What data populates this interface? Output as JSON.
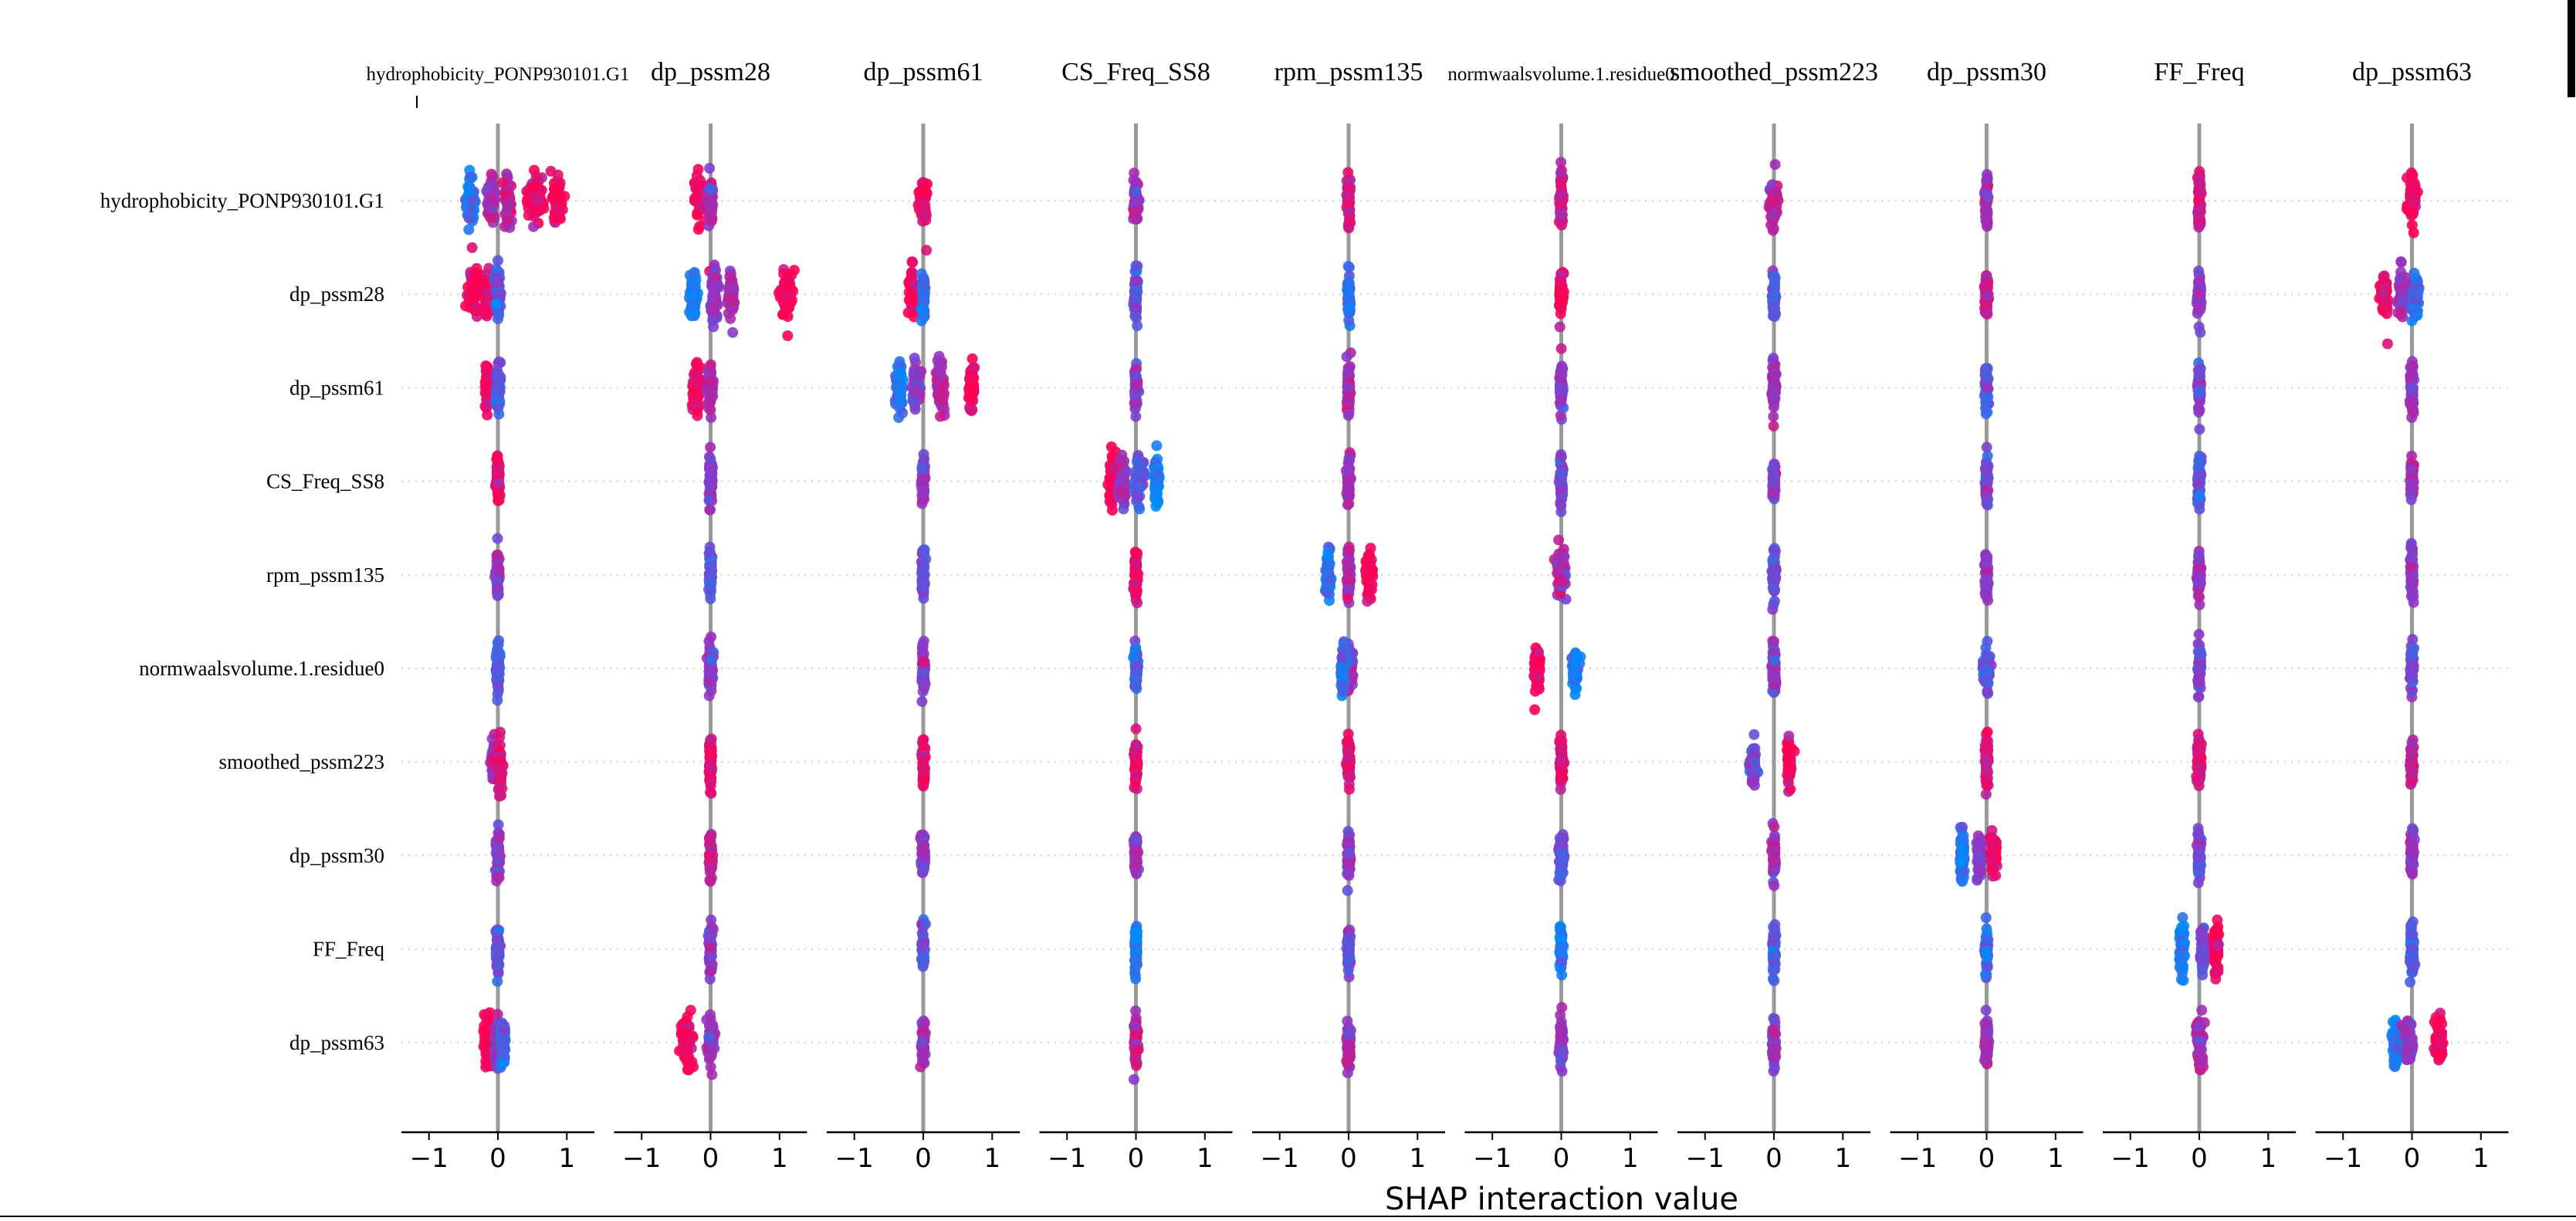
{
  "chart_data": {
    "type": "scatter",
    "title": "",
    "xlabel": "SHAP interaction value",
    "xlim": [
      -1.4,
      1.4
    ],
    "x_ticks": [
      -1,
      0,
      1
    ],
    "x_tick_labels": [
      "−1",
      "0",
      "1"
    ],
    "features": [
      "hydrophobicity_PONP930101.G1",
      "dp_pssm28",
      "dp_pssm61",
      "CS_Freq_SS8",
      "rpm_pssm135",
      "normwaalsvolume.1.residue0",
      "smoothed_pssm223",
      "dp_pssm30",
      "FF_Freq",
      "dp_pssm63"
    ],
    "row_labels": [
      "hydrophobicity_PONP930101.G1",
      "dp_pssm28",
      "dp_pssm61",
      "CS_Freq_SS8",
      "rpm_pssm135",
      "normwaalsvolume.1.residue0",
      "smoothed_pssm223",
      "dp_pssm30",
      "FF_Freq",
      "dp_pssm63"
    ],
    "panel_titles": [
      "hydrophobicity_PONP930101.G1",
      "dp_pssm28",
      "dp_pssm61",
      "CS_Freq_SS8",
      "rpm_pssm135",
      "normwaalsvolume.1.residue0",
      "smoothed_pssm223",
      "dp_pssm30",
      "FF_Freq",
      "dp_pssm63"
    ],
    "colors": {
      "low": "#008afb",
      "high": "#ff0051",
      "mid": "#8c38c8",
      "zero_line": "#999999",
      "axis": "#000000"
    },
    "color_meaning": "feature value (blue = low, red = high)",
    "dot_clusters": [
      [
        [
          {
            "x": -0.4,
            "s": 0.06,
            "c": 0.1
          },
          {
            "x": -0.1,
            "s": 0.05,
            "c": 0.6
          },
          {
            "x": 0.15,
            "s": 0.04,
            "c": 0.7
          },
          {
            "x": 0.55,
            "s": 0.1,
            "c": 0.9
          },
          {
            "x": 0.85,
            "s": 0.06,
            "c": 1
          }
        ],
        [
          {
            "x": -0.35,
            "s": 0.07,
            "c": 0.95
          },
          {
            "x": -0.15,
            "s": 0.05,
            "c": 0.9
          },
          {
            "x": 0.0,
            "s": 0.04,
            "c": 0.3
          }
        ],
        [
          {
            "x": -0.15,
            "s": 0.03,
            "c": 0.9
          },
          {
            "x": 0.0,
            "s": 0.03,
            "c": 0.3
          }
        ],
        [
          {
            "x": 0.0,
            "s": 0.02,
            "c": 0.9
          }
        ],
        [
          {
            "x": 0.0,
            "s": 0.02,
            "c": 0.5
          }
        ],
        [
          {
            "x": 0.0,
            "s": 0.02,
            "c": 0.3
          }
        ],
        [
          {
            "x": -0.05,
            "s": 0.04,
            "c": 0.6
          },
          {
            "x": 0.03,
            "s": 0.03,
            "c": 0.8
          }
        ],
        [
          {
            "x": 0.0,
            "s": 0.02,
            "c": 0.5
          }
        ],
        [
          {
            "x": 0.0,
            "s": 0.02,
            "c": 0.3
          }
        ],
        [
          {
            "x": -0.15,
            "s": 0.05,
            "c": 0.95
          },
          {
            "x": 0.0,
            "s": 0.04,
            "c": 0.5
          },
          {
            "x": 0.08,
            "s": 0.03,
            "c": 0.2
          }
        ]
      ],
      [
        [
          {
            "x": -0.15,
            "s": 0.08,
            "c": 0.95
          },
          {
            "x": 0.0,
            "s": 0.03,
            "c": 0.6
          }
        ],
        [
          {
            "x": -0.25,
            "s": 0.04,
            "c": 0.1
          },
          {
            "x": 0.05,
            "s": 0.05,
            "c": 0.5
          },
          {
            "x": 0.3,
            "s": 0.03,
            "c": 0.6
          },
          {
            "x": 1.1,
            "s": 0.08,
            "c": 0.95
          }
        ],
        [
          {
            "x": -0.2,
            "s": 0.05,
            "c": 0.95
          },
          {
            "x": 0.0,
            "s": 0.03,
            "c": 0.6
          }
        ],
        [
          {
            "x": 0.0,
            "s": 0.02,
            "c": 0.5
          }
        ],
        [
          {
            "x": 0.0,
            "s": 0.02,
            "c": 0.3
          }
        ],
        [
          {
            "x": 0.0,
            "s": 0.03,
            "c": 0.5
          }
        ],
        [
          {
            "x": 0.0,
            "s": 0.02,
            "c": 0.9
          }
        ],
        [
          {
            "x": 0.0,
            "s": 0.02,
            "c": 0.7
          }
        ],
        [
          {
            "x": 0.0,
            "s": 0.02,
            "c": 0.5
          }
        ],
        [
          {
            "x": -0.35,
            "s": 0.07,
            "c": 0.95
          },
          {
            "x": 0.0,
            "s": 0.04,
            "c": 0.5
          }
        ]
      ],
      [
        [
          {
            "x": 0.0,
            "s": 0.04,
            "c": 0.95
          }
        ],
        [
          {
            "x": -0.15,
            "s": 0.05,
            "c": 0.95
          },
          {
            "x": 0.0,
            "s": 0.02,
            "c": 0.2
          }
        ],
        [
          {
            "x": -0.35,
            "s": 0.04,
            "c": 0.1
          },
          {
            "x": -0.1,
            "s": 0.05,
            "c": 0.5
          },
          {
            "x": 0.25,
            "s": 0.05,
            "c": 0.6
          },
          {
            "x": 0.7,
            "s": 0.03,
            "c": 0.95
          }
        ],
        [
          {
            "x": 0.0,
            "s": 0.02,
            "c": 0.5
          }
        ],
        [
          {
            "x": 0.0,
            "s": 0.02,
            "c": 0.3
          }
        ],
        [
          {
            "x": 0.0,
            "s": 0.02,
            "c": 0.5
          }
        ],
        [
          {
            "x": 0.0,
            "s": 0.02,
            "c": 0.9
          }
        ],
        [
          {
            "x": 0.0,
            "s": 0.02,
            "c": 0.5
          }
        ],
        [
          {
            "x": 0.0,
            "s": 0.02,
            "c": 0.3
          }
        ],
        [
          {
            "x": 0.0,
            "s": 0.02,
            "c": 0.6
          }
        ]
      ],
      [
        [
          {
            "x": 0.0,
            "s": 0.03,
            "c": 0.6
          }
        ],
        [
          {
            "x": 0.0,
            "s": 0.02,
            "c": 0.3
          }
        ],
        [
          {
            "x": 0.0,
            "s": 0.02,
            "c": 0.5
          }
        ],
        [
          {
            "x": -0.35,
            "s": 0.04,
            "c": 0.95
          },
          {
            "x": -0.2,
            "s": 0.05,
            "c": 0.6
          },
          {
            "x": 0.05,
            "s": 0.06,
            "c": 0.3
          },
          {
            "x": 0.3,
            "s": 0.03,
            "c": 0.05
          }
        ],
        [
          {
            "x": 0.0,
            "s": 0.02,
            "c": 0.9
          }
        ],
        [
          {
            "x": 0.0,
            "s": 0.02,
            "c": 0.3
          }
        ],
        [
          {
            "x": 0.0,
            "s": 0.02,
            "c": 0.95
          }
        ],
        [
          {
            "x": 0.0,
            "s": 0.02,
            "c": 0.5
          }
        ],
        [
          {
            "x": 0.0,
            "s": 0.02,
            "c": 0.1
          }
        ],
        [
          {
            "x": 0.0,
            "s": 0.02,
            "c": 0.7
          }
        ]
      ],
      [
        [
          {
            "x": 0.0,
            "s": 0.02,
            "c": 0.8
          }
        ],
        [
          {
            "x": 0.0,
            "s": 0.02,
            "c": 0.2
          }
        ],
        [
          {
            "x": 0.0,
            "s": 0.02,
            "c": 0.6
          }
        ],
        [
          {
            "x": 0.0,
            "s": 0.02,
            "c": 0.6
          }
        ],
        [
          {
            "x": -0.3,
            "s": 0.03,
            "c": 0.1
          },
          {
            "x": 0.0,
            "s": 0.02,
            "c": 0.6
          },
          {
            "x": 0.3,
            "s": 0.04,
            "c": 0.95
          }
        ],
        [
          {
            "x": 0.0,
            "s": 0.06,
            "c": 0.5
          },
          {
            "x": -0.08,
            "s": 0.03,
            "c": 0.2
          }
        ],
        [
          {
            "x": 0.0,
            "s": 0.02,
            "c": 0.9
          }
        ],
        [
          {
            "x": 0.0,
            "s": 0.02,
            "c": 0.5
          }
        ],
        [
          {
            "x": 0.0,
            "s": 0.02,
            "c": 0.3
          }
        ],
        [
          {
            "x": 0.0,
            "s": 0.02,
            "c": 0.6
          }
        ]
      ],
      [
        [
          {
            "x": 0.0,
            "s": 0.02,
            "c": 0.8
          }
        ],
        [
          {
            "x": 0.0,
            "s": 0.03,
            "c": 0.95
          }
        ],
        [
          {
            "x": 0.0,
            "s": 0.02,
            "c": 0.5
          }
        ],
        [
          {
            "x": 0.0,
            "s": 0.02,
            "c": 0.4
          }
        ],
        [
          {
            "x": 0.0,
            "s": 0.06,
            "c": 0.6
          }
        ],
        [
          {
            "x": -0.35,
            "s": 0.03,
            "c": 0.95
          },
          {
            "x": 0.2,
            "s": 0.04,
            "c": 0.1
          }
        ],
        [
          {
            "x": 0.0,
            "s": 0.02,
            "c": 0.8
          }
        ],
        [
          {
            "x": 0.0,
            "s": 0.03,
            "c": 0.4
          }
        ],
        [
          {
            "x": 0.0,
            "s": 0.02,
            "c": 0.1
          }
        ],
        [
          {
            "x": 0.0,
            "s": 0.02,
            "c": 0.5
          }
        ]
      ],
      [
        [
          {
            "x": 0.0,
            "s": 0.05,
            "c": 0.7
          }
        ],
        [
          {
            "x": 0.0,
            "s": 0.02,
            "c": 0.3
          }
        ],
        [
          {
            "x": 0.0,
            "s": 0.02,
            "c": 0.6
          }
        ],
        [
          {
            "x": 0.0,
            "s": 0.02,
            "c": 0.5
          }
        ],
        [
          {
            "x": 0.0,
            "s": 0.02,
            "c": 0.4
          }
        ],
        [
          {
            "x": 0.0,
            "s": 0.02,
            "c": 0.5
          }
        ],
        [
          {
            "x": -0.3,
            "s": 0.04,
            "c": 0.4
          },
          {
            "x": 0.22,
            "s": 0.03,
            "c": 0.95
          }
        ],
        [
          {
            "x": 0.0,
            "s": 0.02,
            "c": 0.6
          }
        ],
        [
          {
            "x": 0.0,
            "s": 0.02,
            "c": 0.2
          }
        ],
        [
          {
            "x": 0.0,
            "s": 0.02,
            "c": 0.5
          }
        ]
      ],
      [
        [
          {
            "x": 0.0,
            "s": 0.02,
            "c": 0.6
          }
        ],
        [
          {
            "x": 0.0,
            "s": 0.02,
            "c": 0.8
          }
        ],
        [
          {
            "x": 0.0,
            "s": 0.02,
            "c": 0.3
          }
        ],
        [
          {
            "x": 0.0,
            "s": 0.02,
            "c": 0.4
          }
        ],
        [
          {
            "x": 0.0,
            "s": 0.02,
            "c": 0.5
          }
        ],
        [
          {
            "x": 0.0,
            "s": 0.04,
            "c": 0.3
          }
        ],
        [
          {
            "x": 0.0,
            "s": 0.02,
            "c": 0.8
          }
        ],
        [
          {
            "x": -0.35,
            "s": 0.03,
            "c": 0.15
          },
          {
            "x": -0.1,
            "s": 0.03,
            "c": 0.5
          },
          {
            "x": 0.1,
            "s": 0.04,
            "c": 0.9
          }
        ],
        [
          {
            "x": 0.0,
            "s": 0.02,
            "c": 0.2
          }
        ],
        [
          {
            "x": 0.0,
            "s": 0.02,
            "c": 0.6
          }
        ]
      ],
      [
        [
          {
            "x": 0.0,
            "s": 0.02,
            "c": 0.8
          }
        ],
        [
          {
            "x": 0.0,
            "s": 0.02,
            "c": 0.5
          }
        ],
        [
          {
            "x": 0.0,
            "s": 0.02,
            "c": 0.4
          }
        ],
        [
          {
            "x": 0.0,
            "s": 0.02,
            "c": 0.3
          }
        ],
        [
          {
            "x": 0.0,
            "s": 0.02,
            "c": 0.6
          }
        ],
        [
          {
            "x": 0.0,
            "s": 0.02,
            "c": 0.4
          }
        ],
        [
          {
            "x": 0.0,
            "s": 0.03,
            "c": 0.8
          }
        ],
        [
          {
            "x": 0.0,
            "s": 0.02,
            "c": 0.4
          }
        ],
        [
          {
            "x": -0.25,
            "s": 0.04,
            "c": 0.1
          },
          {
            "x": 0.05,
            "s": 0.03,
            "c": 0.4
          },
          {
            "x": 0.25,
            "s": 0.03,
            "c": 0.95
          }
        ],
        [
          {
            "x": 0.0,
            "s": 0.04,
            "c": 0.6
          }
        ]
      ],
      [
        [
          {
            "x": 0.0,
            "s": 0.05,
            "c": 0.9
          }
        ],
        [
          {
            "x": -0.4,
            "s": 0.04,
            "c": 0.95
          },
          {
            "x": -0.15,
            "s": 0.04,
            "c": 0.6
          },
          {
            "x": 0.05,
            "s": 0.04,
            "c": 0.2
          }
        ],
        [
          {
            "x": 0.0,
            "s": 0.02,
            "c": 0.5
          }
        ],
        [
          {
            "x": 0.0,
            "s": 0.02,
            "c": 0.6
          }
        ],
        [
          {
            "x": 0.0,
            "s": 0.02,
            "c": 0.5
          }
        ],
        [
          {
            "x": 0.0,
            "s": 0.02,
            "c": 0.4
          }
        ],
        [
          {
            "x": 0.0,
            "s": 0.02,
            "c": 0.7
          }
        ],
        [
          {
            "x": 0.0,
            "s": 0.02,
            "c": 0.5
          }
        ],
        [
          {
            "x": 0.0,
            "s": 0.03,
            "c": 0.3
          }
        ],
        [
          {
            "x": -0.25,
            "s": 0.04,
            "c": 0.1
          },
          {
            "x": -0.05,
            "s": 0.05,
            "c": 0.5
          },
          {
            "x": 0.4,
            "s": 0.05,
            "c": 0.95
          }
        ]
      ]
    ]
  }
}
